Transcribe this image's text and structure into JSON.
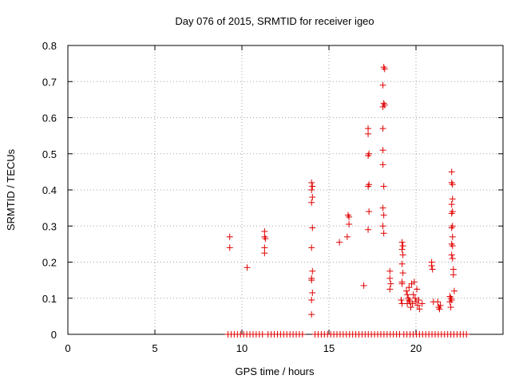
{
  "chart_data": {
    "type": "scatter",
    "title": "Day 076 of 2015, SRMTID for receiver igeo",
    "xlabel": "GPS time / hours",
    "ylabel": "SRMTID / TECUs",
    "xlim": [
      0,
      25
    ],
    "ylim": [
      0,
      0.8
    ],
    "xticks": [
      0,
      5,
      10,
      15,
      20
    ],
    "yticks": [
      0,
      0.1,
      0.2,
      0.3,
      0.4,
      0.5,
      0.6,
      0.7,
      0.8
    ],
    "grid": true,
    "marker": "+",
    "color": "#e00000",
    "series": [
      {
        "name": "SRMTID",
        "points": [
          [
            9.3,
            0.27
          ],
          [
            9.3,
            0.24
          ],
          [
            10.3,
            0.185
          ],
          [
            11.3,
            0.285
          ],
          [
            11.3,
            0.27
          ],
          [
            11.35,
            0.265
          ],
          [
            11.3,
            0.24
          ],
          [
            11.3,
            0.225
          ],
          [
            14.0,
            0.42
          ],
          [
            14.05,
            0.41
          ],
          [
            14.0,
            0.4
          ],
          [
            14.05,
            0.38
          ],
          [
            14.0,
            0.365
          ],
          [
            14.05,
            0.295
          ],
          [
            14.0,
            0.24
          ],
          [
            14.05,
            0.175
          ],
          [
            14.0,
            0.155
          ],
          [
            14.0,
            0.15
          ],
          [
            14.05,
            0.115
          ],
          [
            14.0,
            0.095
          ],
          [
            14.0,
            0.055
          ],
          [
            15.6,
            0.255
          ],
          [
            16.1,
            0.33
          ],
          [
            16.15,
            0.325
          ],
          [
            16.15,
            0.305
          ],
          [
            16.05,
            0.27
          ],
          [
            17.0,
            0.135
          ],
          [
            17.25,
            0.57
          ],
          [
            17.25,
            0.555
          ],
          [
            17.3,
            0.5
          ],
          [
            17.25,
            0.495
          ],
          [
            17.3,
            0.415
          ],
          [
            17.25,
            0.41
          ],
          [
            17.3,
            0.34
          ],
          [
            17.25,
            0.29
          ],
          [
            18.15,
            0.74
          ],
          [
            18.2,
            0.735
          ],
          [
            18.1,
            0.69
          ],
          [
            18.15,
            0.64
          ],
          [
            18.2,
            0.635
          ],
          [
            18.1,
            0.63
          ],
          [
            18.1,
            0.57
          ],
          [
            18.1,
            0.51
          ],
          [
            18.1,
            0.47
          ],
          [
            18.15,
            0.41
          ],
          [
            18.1,
            0.35
          ],
          [
            18.15,
            0.33
          ],
          [
            18.1,
            0.3
          ],
          [
            18.15,
            0.28
          ],
          [
            18.5,
            0.175
          ],
          [
            18.5,
            0.155
          ],
          [
            18.55,
            0.14
          ],
          [
            18.5,
            0.125
          ],
          [
            19.2,
            0.255
          ],
          [
            19.25,
            0.245
          ],
          [
            19.2,
            0.235
          ],
          [
            19.25,
            0.22
          ],
          [
            19.2,
            0.195
          ],
          [
            19.25,
            0.17
          ],
          [
            19.2,
            0.145
          ],
          [
            19.2,
            0.14
          ],
          [
            19.15,
            0.095
          ],
          [
            19.2,
            0.085
          ],
          [
            19.45,
            0.12
          ],
          [
            19.5,
            0.11
          ],
          [
            19.55,
            0.1
          ],
          [
            19.6,
            0.13
          ],
          [
            19.65,
            0.09
          ],
          [
            19.7,
            0.075
          ],
          [
            19.75,
            0.14
          ],
          [
            19.8,
            0.085
          ],
          [
            19.6,
            0.095
          ],
          [
            19.85,
            0.11
          ],
          [
            19.5,
            0.085
          ],
          [
            19.9,
            0.145
          ],
          [
            19.95,
            0.1
          ],
          [
            20.0,
            0.09
          ],
          [
            20.05,
            0.125
          ],
          [
            20.1,
            0.08
          ],
          [
            20.2,
            0.07
          ],
          [
            20.15,
            0.095
          ],
          [
            20.35,
            0.085
          ],
          [
            20.9,
            0.2
          ],
          [
            20.9,
            0.19
          ],
          [
            20.95,
            0.18
          ],
          [
            21.0,
            0.09
          ],
          [
            21.25,
            0.09
          ],
          [
            21.3,
            0.075
          ],
          [
            21.35,
            0.07
          ],
          [
            21.4,
            0.08
          ],
          [
            21.95,
            0.105
          ],
          [
            22.0,
            0.1
          ],
          [
            21.95,
            0.09
          ],
          [
            22.0,
            0.075
          ],
          [
            22.05,
            0.095
          ],
          [
            22.05,
            0.45
          ],
          [
            22.05,
            0.42
          ],
          [
            22.1,
            0.415
          ],
          [
            22.1,
            0.375
          ],
          [
            22.05,
            0.36
          ],
          [
            22.1,
            0.34
          ],
          [
            22.05,
            0.335
          ],
          [
            22.1,
            0.3
          ],
          [
            22.05,
            0.295
          ],
          [
            22.1,
            0.27
          ],
          [
            22.05,
            0.25
          ],
          [
            22.1,
            0.245
          ],
          [
            22.05,
            0.22
          ],
          [
            22.1,
            0.21
          ],
          [
            22.15,
            0.18
          ],
          [
            22.15,
            0.165
          ],
          [
            22.2,
            0.12
          ]
        ]
      },
      {
        "name": "baseline-zeros",
        "y": 0,
        "x_ranges": [
          [
            9.2,
            11.2
          ],
          [
            11.5,
            13.6
          ],
          [
            14.2,
            19.1
          ],
          [
            19.3,
            22.9
          ]
        ],
        "step": 0.18
      }
    ]
  }
}
